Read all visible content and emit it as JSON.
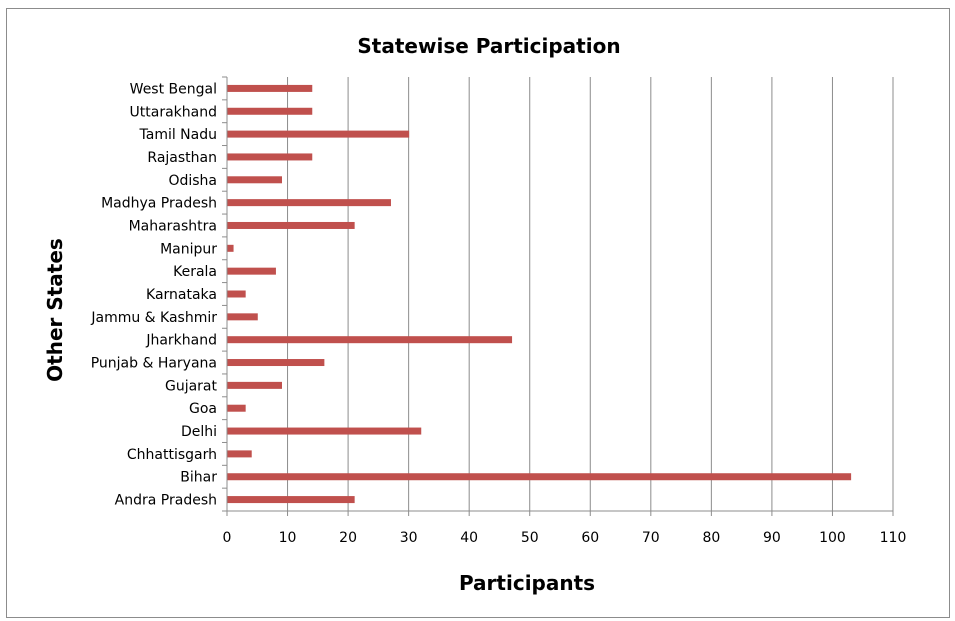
{
  "chart_data": {
    "type": "bar",
    "orientation": "horizontal",
    "title": "Statewise Participation",
    "xlabel": "Participants",
    "ylabel": "Other States",
    "xlim": [
      0,
      110
    ],
    "x_ticks": [
      0,
      10,
      20,
      30,
      40,
      50,
      60,
      70,
      80,
      90,
      100,
      110
    ],
    "grid": "vertical major gridlines",
    "legend": "none",
    "bar_color": "#c0504d",
    "categories": [
      "Andra Pradesh",
      "Bihar",
      "Chhattisgarh",
      "Delhi",
      "Goa",
      "Gujarat",
      "Punjab & Haryana",
      "Jharkhand",
      "Jammu & Kashmir",
      "Karnataka",
      "Kerala",
      "Manipur",
      "Maharashtra",
      "Madhya Pradesh",
      "Odisha",
      "Rajasthan",
      "Tamil Nadu",
      "Uttarakhand",
      "West Bengal"
    ],
    "values": [
      21,
      103,
      4,
      32,
      3,
      9,
      16,
      47,
      5,
      3,
      8,
      1,
      21,
      27,
      9,
      14,
      30,
      14,
      14
    ]
  }
}
